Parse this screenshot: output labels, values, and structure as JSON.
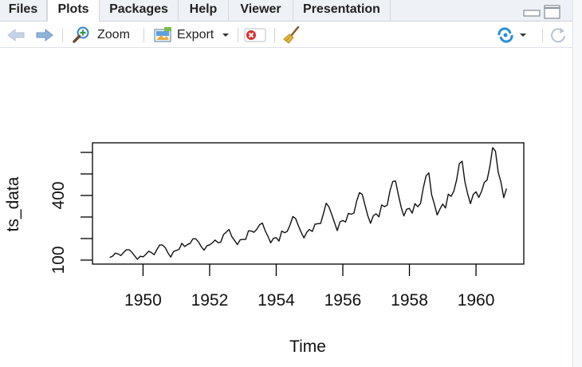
{
  "tabs": [
    {
      "label": "Files",
      "active": false
    },
    {
      "label": "Plots",
      "active": true
    },
    {
      "label": "Packages",
      "active": false
    },
    {
      "label": "Help",
      "active": false
    },
    {
      "label": "Viewer",
      "active": false
    },
    {
      "label": "Presentation",
      "active": false
    }
  ],
  "toolbar": {
    "zoom_label": "Zoom",
    "export_label": "Export",
    "icons": [
      "arrow-left-icon",
      "arrow-right-icon",
      "zoom-icon",
      "export-icon",
      "remove-plot-icon",
      "broom-icon",
      "sync-icon",
      "refresh-icon"
    ]
  },
  "colors": {
    "tab_bar": "#eef1f5",
    "accent_blue": "#2a8fd8",
    "remove_red": "#d9302b"
  },
  "chart_data": {
    "type": "line",
    "title": "",
    "xlabel": "Time",
    "ylabel": "ts_data",
    "xlim": [
      1949,
      1960.917
    ],
    "ylim": [
      104,
      622
    ],
    "x_ticks": [
      "1950",
      "1952",
      "1954",
      "1956",
      "1958",
      "1960"
    ],
    "y_ticks": [
      100,
      200,
      300,
      400,
      500,
      600
    ],
    "y_tick_labels": [
      "100",
      "400"
    ],
    "series": [
      {
        "start": 1949,
        "frequency": 12,
        "values": [
          112,
          118,
          132,
          129,
          121,
          135,
          148,
          148,
          136,
          119,
          104,
          118,
          115,
          126,
          141,
          135,
          125,
          149,
          170,
          170,
          158,
          133,
          114,
          140,
          145,
          150,
          178,
          163,
          172,
          178,
          199,
          199,
          184,
          162,
          146,
          166,
          171,
          180,
          193,
          181,
          183,
          218,
          230,
          242,
          209,
          191,
          172,
          194,
          196,
          196,
          236,
          235,
          229,
          243,
          264,
          272,
          237,
          211,
          180,
          201,
          204,
          188,
          235,
          227,
          234,
          264,
          302,
          293,
          259,
          229,
          203,
          229,
          242,
          233,
          267,
          269,
          270,
          315,
          364,
          347,
          312,
          274,
          237,
          278,
          284,
          277,
          317,
          313,
          318,
          374,
          413,
          405,
          355,
          306,
          271,
          306,
          315,
          301,
          356,
          348,
          355,
          422,
          465,
          467,
          404,
          347,
          305,
          336,
          340,
          318,
          362,
          348,
          363,
          435,
          491,
          505,
          404,
          359,
          310,
          337,
          360,
          342,
          406,
          396,
          420,
          472,
          548,
          559,
          463,
          407,
          362,
          405,
          417,
          391,
          419,
          461,
          472,
          535,
          622,
          606,
          508,
          461,
          390,
          432
        ]
      }
    ]
  }
}
